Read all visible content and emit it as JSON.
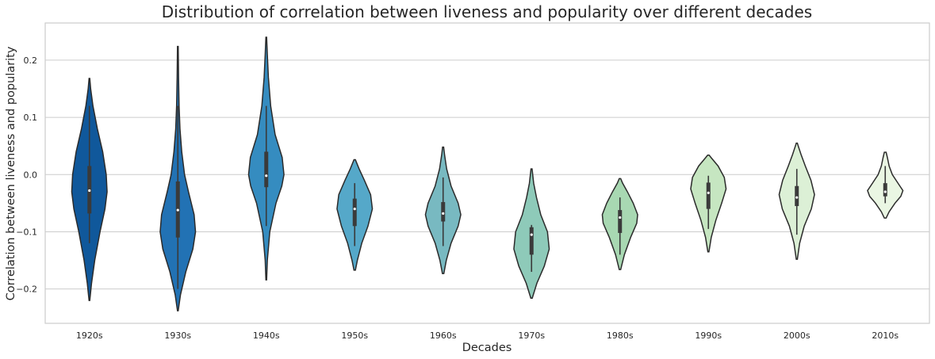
{
  "chart_data": {
    "type": "violin",
    "title": "Distribution of correlation between liveness and popularity over different decades",
    "xlabel": "Decades",
    "ylabel": "Correlation between liveness and popularity",
    "ylim": [
      -0.26,
      0.265
    ],
    "yticks": [
      -0.2,
      -0.1,
      0.0,
      0.1,
      0.2
    ],
    "ytick_labels": [
      "−0.2",
      "−0.1",
      "0.0",
      "0.1",
      "0.2"
    ],
    "grid": "horizontal",
    "categories": [
      "1920s",
      "1930s",
      "1940s",
      "1950s",
      "1960s",
      "1970s",
      "1980s",
      "1990s",
      "2000s",
      "2010s"
    ],
    "series": [
      {
        "category": "1920s",
        "min": -0.22,
        "max": 0.168,
        "q1": -0.068,
        "median": -0.028,
        "q3": 0.015,
        "whisker_low": -0.12,
        "whisker_high": 0.12,
        "peak": -0.02,
        "color": "#10589b",
        "profile": [
          [
            -0.22,
            0.02
          ],
          [
            -0.19,
            0.12
          ],
          [
            -0.15,
            0.3
          ],
          [
            -0.1,
            0.6
          ],
          [
            -0.06,
            0.88
          ],
          [
            -0.03,
            1.0
          ],
          [
            0.0,
            0.95
          ],
          [
            0.04,
            0.75
          ],
          [
            0.08,
            0.45
          ],
          [
            0.12,
            0.2
          ],
          [
            0.15,
            0.07
          ],
          [
            0.168,
            0.02
          ]
        ]
      },
      {
        "category": "1930s",
        "min": -0.238,
        "max": 0.224,
        "q1": -0.11,
        "median": -0.062,
        "q3": -0.012,
        "whisker_low": -0.2,
        "whisker_high": 0.12,
        "peak": -0.085,
        "color": "#2272b4",
        "profile": [
          [
            -0.238,
            0.02
          ],
          [
            -0.21,
            0.15
          ],
          [
            -0.17,
            0.45
          ],
          [
            -0.13,
            0.85
          ],
          [
            -0.1,
            1.0
          ],
          [
            -0.07,
            0.92
          ],
          [
            -0.03,
            0.6
          ],
          [
            0.0,
            0.38
          ],
          [
            0.04,
            0.22
          ],
          [
            0.08,
            0.12
          ],
          [
            0.12,
            0.07
          ],
          [
            0.17,
            0.04
          ],
          [
            0.224,
            0.02
          ]
        ]
      },
      {
        "category": "1940s",
        "min": -0.184,
        "max": 0.24,
        "q1": -0.022,
        "median": -0.002,
        "q3": 0.04,
        "whisker_low": -0.09,
        "whisker_high": 0.12,
        "peak": 0.0,
        "color": "#358cc0",
        "profile": [
          [
            -0.184,
            0.02
          ],
          [
            -0.15,
            0.06
          ],
          [
            -0.1,
            0.2
          ],
          [
            -0.05,
            0.55
          ],
          [
            -0.02,
            0.88
          ],
          [
            0.0,
            1.0
          ],
          [
            0.03,
            0.9
          ],
          [
            0.07,
            0.5
          ],
          [
            0.12,
            0.25
          ],
          [
            0.17,
            0.12
          ],
          [
            0.21,
            0.06
          ],
          [
            0.24,
            0.02
          ]
        ]
      },
      {
        "category": "1950s",
        "min": -0.167,
        "max": 0.026,
        "q1": -0.09,
        "median": -0.06,
        "q3": -0.042,
        "whisker_low": -0.125,
        "whisker_high": -0.015,
        "peak": -0.058,
        "color": "#55a8c9",
        "profile": [
          [
            -0.167,
            0.04
          ],
          [
            -0.15,
            0.15
          ],
          [
            -0.12,
            0.4
          ],
          [
            -0.09,
            0.75
          ],
          [
            -0.06,
            1.0
          ],
          [
            -0.035,
            0.9
          ],
          [
            -0.01,
            0.55
          ],
          [
            0.01,
            0.25
          ],
          [
            0.026,
            0.04
          ]
        ]
      },
      {
        "category": "1960s",
        "min": -0.173,
        "max": 0.048,
        "q1": -0.082,
        "median": -0.068,
        "q3": -0.048,
        "whisker_low": -0.125,
        "whisker_high": -0.005,
        "peak": -0.07,
        "color": "#78b9c1",
        "profile": [
          [
            -0.173,
            0.04
          ],
          [
            -0.15,
            0.18
          ],
          [
            -0.12,
            0.45
          ],
          [
            -0.09,
            0.85
          ],
          [
            -0.07,
            1.0
          ],
          [
            -0.05,
            0.85
          ],
          [
            -0.02,
            0.45
          ],
          [
            0.01,
            0.2
          ],
          [
            0.035,
            0.08
          ],
          [
            0.048,
            0.03
          ]
        ]
      },
      {
        "category": "1970s",
        "min": -0.216,
        "max": 0.01,
        "q1": -0.14,
        "median": -0.105,
        "q3": -0.092,
        "whisker_low": -0.17,
        "whisker_high": -0.088,
        "peak": -0.12,
        "color": "#8ecab9",
        "profile": [
          [
            -0.216,
            0.04
          ],
          [
            -0.19,
            0.3
          ],
          [
            -0.16,
            0.72
          ],
          [
            -0.13,
            1.0
          ],
          [
            -0.1,
            0.9
          ],
          [
            -0.07,
            0.52
          ],
          [
            -0.04,
            0.28
          ],
          [
            -0.015,
            0.12
          ],
          [
            0.01,
            0.03
          ]
        ]
      },
      {
        "category": "1980s",
        "min": -0.166,
        "max": -0.007,
        "q1": -0.102,
        "median": -0.075,
        "q3": -0.062,
        "whisker_low": -0.14,
        "whisker_high": -0.04,
        "peak": -0.073,
        "color": "#a8d8b2",
        "profile": [
          [
            -0.166,
            0.04
          ],
          [
            -0.14,
            0.25
          ],
          [
            -0.11,
            0.6
          ],
          [
            -0.085,
            0.95
          ],
          [
            -0.07,
            1.0
          ],
          [
            -0.05,
            0.75
          ],
          [
            -0.03,
            0.42
          ],
          [
            -0.015,
            0.15
          ],
          [
            -0.007,
            0.04
          ]
        ]
      },
      {
        "category": "1990s",
        "min": -0.135,
        "max": 0.034,
        "q1": -0.06,
        "median": -0.032,
        "q3": -0.014,
        "whisker_low": -0.095,
        "whisker_high": -0.002,
        "peak": -0.025,
        "color": "#c6e6c1",
        "profile": [
          [
            -0.135,
            0.03
          ],
          [
            -0.11,
            0.16
          ],
          [
            -0.08,
            0.42
          ],
          [
            -0.05,
            0.75
          ],
          [
            -0.025,
            1.0
          ],
          [
            -0.005,
            0.9
          ],
          [
            0.015,
            0.55
          ],
          [
            0.028,
            0.2
          ],
          [
            0.034,
            0.04
          ]
        ]
      },
      {
        "category": "2000s",
        "min": -0.148,
        "max": 0.055,
        "q1": -0.055,
        "median": -0.04,
        "q3": -0.02,
        "whisker_low": -0.105,
        "whisker_high": 0.01,
        "peak": -0.032,
        "color": "#dcf0d6",
        "profile": [
          [
            -0.148,
            0.03
          ],
          [
            -0.12,
            0.16
          ],
          [
            -0.09,
            0.42
          ],
          [
            -0.06,
            0.82
          ],
          [
            -0.035,
            1.0
          ],
          [
            -0.01,
            0.8
          ],
          [
            0.015,
            0.48
          ],
          [
            0.035,
            0.24
          ],
          [
            0.05,
            0.08
          ],
          [
            0.055,
            0.03
          ]
        ]
      },
      {
        "category": "2010s",
        "min": -0.076,
        "max": 0.039,
        "q1": -0.038,
        "median": -0.03,
        "q3": -0.015,
        "whisker_low": -0.05,
        "whisker_high": 0.015,
        "peak": -0.028,
        "color": "#eaf6e3",
        "profile": [
          [
            -0.076,
            0.05
          ],
          [
            -0.065,
            0.22
          ],
          [
            -0.05,
            0.55
          ],
          [
            -0.038,
            0.88
          ],
          [
            -0.028,
            1.0
          ],
          [
            -0.015,
            0.72
          ],
          [
            0.0,
            0.4
          ],
          [
            0.015,
            0.22
          ],
          [
            0.03,
            0.12
          ],
          [
            0.039,
            0.05
          ]
        ]
      }
    ]
  }
}
